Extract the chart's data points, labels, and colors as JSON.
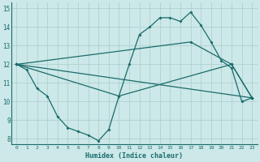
{
  "xlabel": "Humidex (Indice chaleur)",
  "bg_color": "#cce8e8",
  "line_color": "#1a6b6b",
  "grid_color": "#aacccc",
  "xlim": [
    -0.5,
    23.5
  ],
  "ylim": [
    7.7,
    15.3
  ],
  "yticks": [
    8,
    9,
    10,
    11,
    12,
    13,
    14,
    15
  ],
  "xticks": [
    0,
    1,
    2,
    3,
    4,
    5,
    6,
    7,
    8,
    9,
    10,
    11,
    12,
    13,
    14,
    15,
    16,
    17,
    18,
    19,
    20,
    21,
    22,
    23
  ],
  "curve1": {
    "x": [
      0,
      1,
      2,
      3,
      4,
      5,
      6,
      7,
      8,
      9,
      10,
      11,
      12,
      13,
      14,
      15,
      16,
      17,
      18,
      19,
      20,
      21,
      22,
      23
    ],
    "y": [
      12.0,
      11.7,
      10.7,
      10.3,
      9.2,
      8.6,
      8.4,
      8.2,
      7.9,
      8.5,
      10.3,
      12.0,
      13.6,
      14.0,
      14.5,
      14.5,
      14.3,
      14.8,
      14.1,
      13.2,
      12.2,
      11.8,
      10.0,
      10.2
    ]
  },
  "line_straight": {
    "x": [
      0,
      23
    ],
    "y": [
      12.0,
      10.2
    ]
  },
  "line_up": {
    "x": [
      0,
      17,
      21,
      23
    ],
    "y": [
      12.0,
      13.2,
      12.0,
      10.2
    ]
  },
  "line_mid": {
    "x": [
      0,
      10,
      21,
      23
    ],
    "y": [
      12.0,
      10.3,
      12.0,
      10.2
    ]
  }
}
